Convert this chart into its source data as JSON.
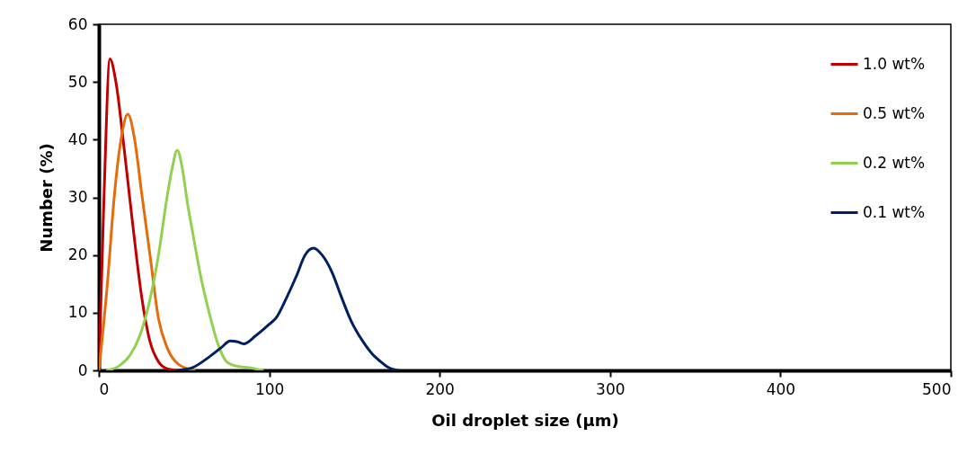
{
  "chart_data": {
    "type": "line",
    "xlabel": "Oil droplet size (μm)",
    "ylabel": "Number (%)",
    "xlim": [
      0,
      500
    ],
    "xticks": [
      0,
      100,
      200,
      300,
      400,
      500
    ],
    "ylim": [
      0,
      60
    ],
    "yticks": [
      0,
      10,
      20,
      30,
      40,
      50,
      60
    ],
    "grid": false,
    "legend": "top right",
    "marker": "none",
    "line_style": "solid",
    "series": [
      {
        "name": "1.0 wt%",
        "color": "#c00000",
        "x": [
          0,
          3,
          6.5,
          10,
          15,
          20,
          25,
          30,
          35,
          40,
          46
        ],
        "values": [
          0,
          30,
          54,
          50,
          38,
          25,
          13,
          5,
          1.5,
          0.3,
          0
        ]
      },
      {
        "name": "0.5 wt%",
        "color": "#e46c0a",
        "x": [
          0,
          5,
          9,
          13,
          17,
          21,
          25,
          30,
          35,
          40,
          47,
          56
        ],
        "values": [
          0,
          15,
          30,
          40,
          44.4,
          40,
          31,
          20,
          9,
          4,
          1,
          0
        ]
      },
      {
        "name": "0.2 wt%",
        "color": "#92d050",
        "x": [
          5,
          12,
          18,
          24,
          30,
          35,
          40,
          43,
          46,
          49,
          52,
          55,
          60,
          65,
          70,
          75,
          80,
          90,
          96
        ],
        "values": [
          0,
          0.8,
          2.5,
          6,
          12.3,
          20,
          30,
          35,
          38.2,
          35,
          29,
          24,
          16,
          9.7,
          4.5,
          1.5,
          0.8,
          0.4,
          0
        ]
      },
      {
        "name": "0.1 wt%",
        "color": "#002060",
        "x": [
          46,
          55,
          65,
          72,
          77,
          81,
          85,
          92,
          100,
          104,
          110,
          116,
          121,
          126,
          131,
          137,
          142,
          148,
          155,
          160,
          165,
          170,
          176
        ],
        "values": [
          0,
          0.5,
          2.4,
          4,
          5.1,
          5,
          4.6,
          6,
          8,
          9.1,
          12.5,
          16.4,
          20,
          21.2,
          20,
          16.9,
          13,
          8.6,
          5,
          3,
          1.6,
          0.5,
          0
        ]
      }
    ]
  }
}
